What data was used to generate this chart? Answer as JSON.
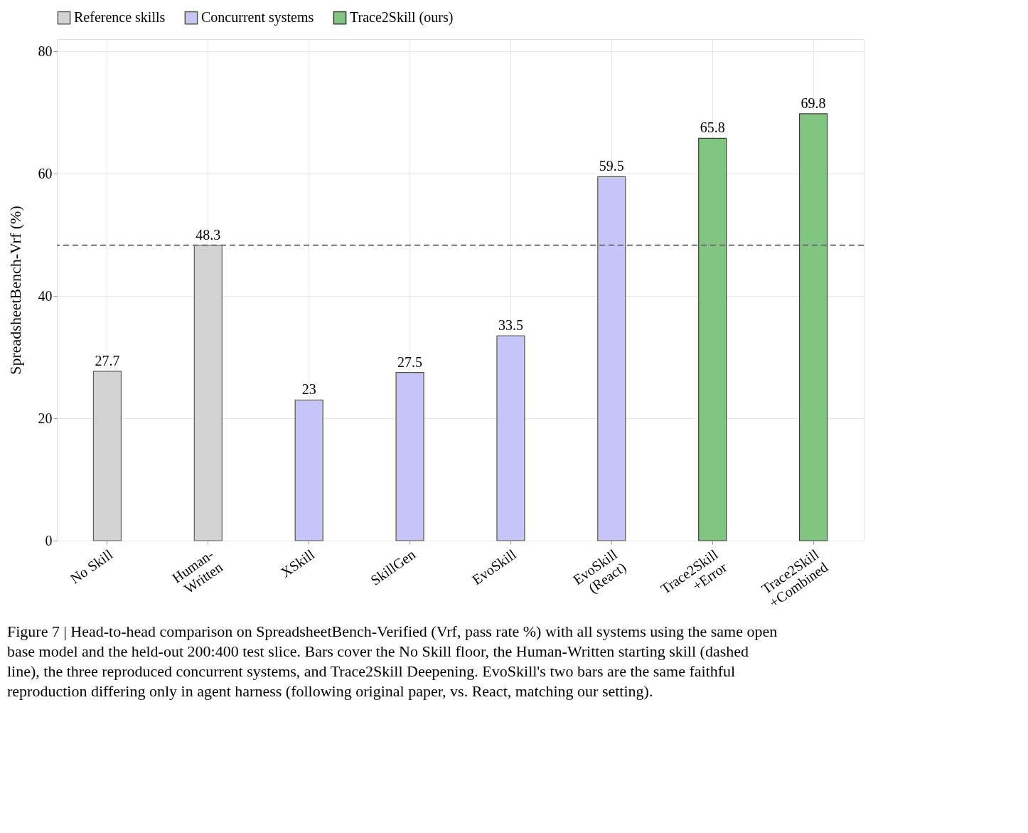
{
  "chart_data": {
    "type": "bar",
    "categories": [
      "No Skill",
      "Human-\nWritten",
      "XSkill",
      "SkillGen",
      "EvoSkill",
      "EvoSkill\n(React)",
      "Trace2Skill\n+Error",
      "Trace2Skill\n+Combined"
    ],
    "series": [
      {
        "name": "Reference skills",
        "color": "#d3d3d3",
        "values": [
          27.7,
          48.3,
          null,
          null,
          null,
          null,
          null,
          null
        ]
      },
      {
        "name": "Concurrent systems",
        "color": "#c5c5fa",
        "values": [
          null,
          null,
          23,
          27.5,
          33.5,
          59.5,
          null,
          null
        ]
      },
      {
        "name": "Trace2Skill (ours)",
        "color": "#80c580",
        "values": [
          null,
          null,
          null,
          null,
          null,
          null,
          65.8,
          69.8
        ]
      }
    ],
    "ylabel": "SpreadsheetBench-Vrf (%)",
    "ylim": [
      0,
      82
    ],
    "yticks": [
      0,
      20,
      40,
      60,
      80
    ],
    "ref_lines": [
      {
        "axis": "y",
        "value": 48.3,
        "label": null,
        "color": "#707070",
        "line_style": "dashed"
      }
    ],
    "data_labels": true,
    "grid": true,
    "legend": "top",
    "annotations": [
      "Figure 7 | Head-to-head comparison on SpreadsheetBench-Verified (Vrf, pass rate %) with all systems using the same open base model and the held-out 200:400 test slice. Bars cover the No Skill floor, the Human-Written starting skill (dashed line), the three reproduced concurrent systems, and Trace2Skill Deepening. EvoSkill's two bars are the same faithful reproduction differing only in agent harness (following original paper, vs. React, matching our setting)."
    ]
  }
}
